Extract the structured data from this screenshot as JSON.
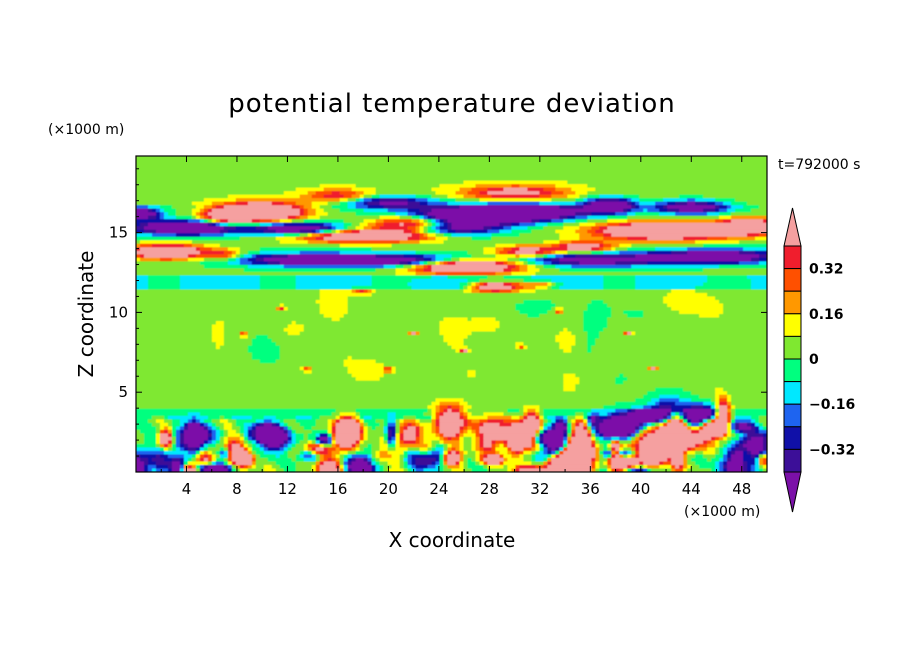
{
  "chart_data": {
    "type": "heatmap",
    "title": "potential temperature deviation",
    "xlabel": "X coordinate",
    "ylabel": "Z coordinate",
    "x_unit": "(×1000 m)",
    "y_unit": "(×1000 m)",
    "time_label": "t=792000 s",
    "xlim": [
      0,
      50
    ],
    "ylim": [
      0,
      19.8
    ],
    "x_ticks": [
      4,
      8,
      12,
      16,
      20,
      24,
      28,
      32,
      36,
      40,
      44,
      48
    ],
    "y_ticks": [
      5,
      10,
      15
    ],
    "colorbar": {
      "levels": [
        -0.4,
        -0.32,
        -0.24,
        -0.16,
        -0.08,
        0,
        0.08,
        0.16,
        0.24,
        0.32,
        0.4
      ],
      "labels": [
        "0.32",
        "0.16",
        "0",
        "−0.16",
        "−0.32"
      ],
      "label_values": [
        0.32,
        0.16,
        0,
        -0.16,
        -0.32
      ],
      "colors": {
        "under": "#7B10A8",
        "bands": [
          "#3C0F98",
          "#1010A8",
          "#1E64F0",
          "#00E8FF",
          "#00FF7F",
          "#7FE830",
          "#FFFF00",
          "#FF9800",
          "#FF5000",
          "#F01E2D"
        ],
        "over": "#F5A0A0"
      }
    },
    "field_regions": [
      {
        "name": "background",
        "x": [
          0,
          50
        ],
        "z": [
          0,
          19.8
        ],
        "value": 0.02
      },
      {
        "name": "upper-sky",
        "x": [
          0,
          50
        ],
        "z": [
          16.8,
          19.8
        ],
        "value": 0.05
      },
      {
        "name": "tropopause-band",
        "x": [
          0,
          50
        ],
        "z": [
          11.6,
          12.3
        ],
        "value": -0.1
      },
      {
        "name": "upper-warm-1",
        "x": [
          6,
          13
        ],
        "z": [
          15.6,
          17.2
        ],
        "value": 0.45
      },
      {
        "name": "upper-cold-1",
        "x": [
          0,
          21
        ],
        "z": [
          14.5,
          15.6
        ],
        "value": -0.42
      },
      {
        "name": "upper-warm-2",
        "x": [
          12,
          26
        ],
        "z": [
          13.6,
          16.6
        ],
        "value": 0.42
      },
      {
        "name": "upper-cold-2",
        "x": [
          18,
          39
        ],
        "z": [
          13.4,
          17.0
        ],
        "value": -0.42
      },
      {
        "name": "upper-warm-3",
        "x": [
          0,
          9
        ],
        "z": [
          12.6,
          14.2
        ],
        "value": 0.42
      },
      {
        "name": "upper-cold-3",
        "x": [
          6,
          50
        ],
        "z": [
          12.5,
          13.8
        ],
        "value": -0.38
      },
      {
        "name": "upper-warm-4",
        "x": [
          19,
          32
        ],
        "z": [
          12.0,
          13.6
        ],
        "value": 0.45
      },
      {
        "name": "upper-warm-5",
        "x": [
          36,
          50
        ],
        "z": [
          14.0,
          15.8
        ],
        "value": 0.45
      },
      {
        "name": "upper-cold-4",
        "x": [
          40,
          50
        ],
        "z": [
          15.6,
          17.0
        ],
        "value": -0.35
      },
      {
        "name": "mid-warm-patch",
        "x": [
          26,
          31
        ],
        "z": [
          10.8,
          11.7
        ],
        "value": 0.42
      },
      {
        "name": "boundary-layer-cold",
        "x": [
          0,
          50
        ],
        "z": [
          0,
          3.6
        ],
        "value": -0.3
      },
      {
        "name": "boundary-layer-warm",
        "x": [
          0,
          50
        ],
        "z": [
          0,
          3.6
        ],
        "value": 0.3
      }
    ]
  }
}
